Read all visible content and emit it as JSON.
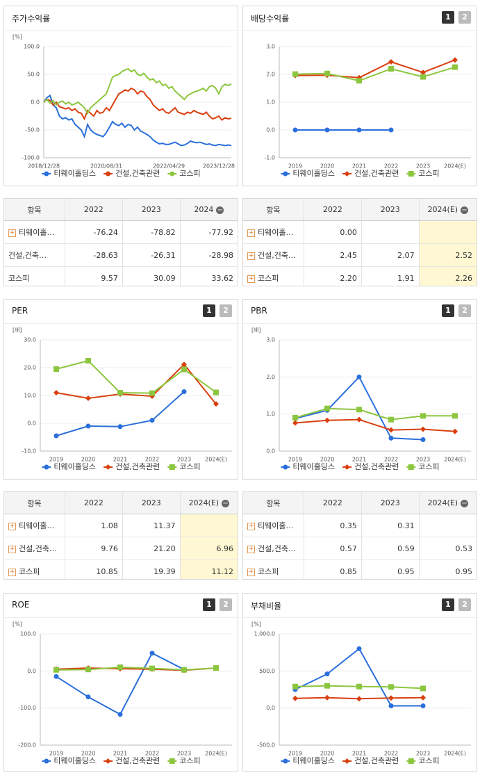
{
  "chart_data": [
    {
      "type": "timeline",
      "title": "주가수익률",
      "unit": "[%]",
      "categories": [
        "2018/12/28",
        null,
        null,
        null,
        null,
        null,
        null,
        null,
        null,
        null,
        null,
        null,
        null,
        null,
        null,
        null,
        null,
        null,
        null,
        null,
        "2020/08/31",
        null,
        null,
        null,
        null,
        null,
        null,
        null,
        null,
        null,
        null,
        null,
        null,
        null,
        null,
        null,
        null,
        null,
        null,
        null,
        "2022/04/29",
        null,
        null,
        null,
        null,
        null,
        null,
        null,
        null,
        null,
        null,
        null,
        null,
        null,
        null,
        null,
        null,
        null,
        null,
        null,
        "2023/12/28"
      ],
      "series": [
        {
          "name": "티웨이홀딩스",
          "color": "#2a6fdb",
          "values": [
            0,
            8,
            12,
            -5,
            -10,
            -25,
            -30,
            -28,
            -32,
            -30,
            -40,
            -45,
            -50,
            -62,
            -40,
            -50,
            -55,
            -58,
            -60,
            -62,
            -55,
            -45,
            -35,
            -40,
            -42,
            -38,
            -45,
            -40,
            -42,
            -50,
            -45,
            -52,
            -55,
            -58,
            -62,
            -68,
            -72,
            -75,
            -74,
            -76,
            -76,
            -74,
            -72,
            -75,
            -78,
            -77,
            -74,
            -70,
            -72,
            -73,
            -72,
            -74,
            -76,
            -75,
            -77,
            -78,
            -76,
            -77,
            -78,
            -77,
            -78
          ]
        },
        {
          "name": "건설,건축관련",
          "color": "#d9400f",
          "values": [
            0,
            5,
            3,
            -5,
            0,
            -8,
            -10,
            -12,
            -10,
            -15,
            -12,
            -18,
            -20,
            -30,
            -15,
            -20,
            -25,
            -15,
            -20,
            -18,
            -10,
            -15,
            -5,
            5,
            15,
            18,
            22,
            20,
            25,
            22,
            15,
            20,
            18,
            10,
            5,
            -5,
            -10,
            -15,
            -12,
            -18,
            -20,
            -15,
            -10,
            -18,
            -20,
            -22,
            -18,
            -20,
            -15,
            -18,
            -20,
            -22,
            -18,
            -25,
            -30,
            -28,
            -25,
            -32,
            -28,
            -30,
            -29
          ]
        },
        {
          "name": "코스피",
          "color": "#8cc63f",
          "values": [
            0,
            5,
            -2,
            3,
            -5,
            0,
            2,
            -3,
            0,
            -5,
            -3,
            0,
            -5,
            -10,
            -20,
            -10,
            -5,
            0,
            5,
            10,
            15,
            30,
            45,
            48,
            50,
            55,
            58,
            60,
            55,
            58,
            50,
            48,
            52,
            45,
            40,
            42,
            35,
            38,
            30,
            32,
            25,
            28,
            20,
            15,
            10,
            5,
            12,
            15,
            18,
            20,
            22,
            25,
            20,
            28,
            30,
            25,
            15,
            28,
            32,
            30,
            33
          ]
        }
      ],
      "ylim": [
        -100,
        100
      ],
      "yticks": [
        {
          "value": -100,
          "label": "-100.0"
        },
        {
          "value": -50,
          "label": "-50.0"
        },
        {
          "value": 0,
          "label": "0.0"
        },
        {
          "value": 50,
          "label": "50.0"
        },
        {
          "value": 100,
          "label": "100.0"
        }
      ],
      "grid": true
    },
    {
      "type": "line",
      "title": "배당수익률",
      "buttons": [
        "1",
        "2"
      ],
      "categories": [
        "2019",
        "2020",
        "2021",
        "2022",
        "2023",
        "2024(E)"
      ],
      "series": [
        {
          "name": "티웨이홀딩스",
          "color": "#2a6fdb",
          "marker": "circle",
          "values": [
            0,
            0,
            0,
            0,
            null,
            null
          ]
        },
        {
          "name": "건설,건축관련",
          "color": "#d9400f",
          "marker": "diamond",
          "values": [
            1.96,
            1.97,
            1.88,
            2.45,
            2.07,
            2.52
          ]
        },
        {
          "name": "코스피",
          "color": "#8cc63f",
          "marker": "square",
          "values": [
            2.01,
            2.03,
            1.77,
            2.2,
            1.91,
            2.26
          ]
        }
      ],
      "ylim": [
        -1,
        3
      ],
      "yticks": [
        {
          "value": -1,
          "label": "-1.0"
        },
        {
          "value": 0,
          "label": "0.0"
        },
        {
          "value": 1,
          "label": "1.0"
        },
        {
          "value": 2,
          "label": "2.0"
        },
        {
          "value": 3,
          "label": "3.0"
        }
      ],
      "grid": true
    },
    {
      "type": "line",
      "title": "PER",
      "unit": "[배]",
      "buttons": [
        "1",
        "2"
      ],
      "categories": [
        "2019",
        "2020",
        "2021",
        "2022",
        "2023",
        "2024(E)"
      ],
      "series": [
        {
          "name": "티웨이홀딩스",
          "color": "#2a6fdb",
          "marker": "circle",
          "values": [
            -4.5,
            -1,
            -1.2,
            1.08,
            11.37,
            null
          ]
        },
        {
          "name": "건설,건축관련",
          "color": "#d9400f",
          "marker": "diamond",
          "values": [
            11,
            9,
            10.5,
            9.76,
            21.2,
            6.96
          ]
        },
        {
          "name": "코스피",
          "color": "#8cc63f",
          "marker": "square",
          "values": [
            19.5,
            22.5,
            11,
            10.85,
            19.39,
            11.12
          ]
        }
      ],
      "ylim": [
        -10,
        30
      ],
      "yticks": [
        {
          "value": -10,
          "label": "-10.0"
        },
        {
          "value": 0,
          "label": "0.0"
        },
        {
          "value": 10,
          "label": "10.0"
        },
        {
          "value": 20,
          "label": "20.0"
        },
        {
          "value": 30,
          "label": "30.0"
        }
      ],
      "grid": true
    },
    {
      "type": "line",
      "title": "PBR",
      "unit": "[배]",
      "buttons": [
        "1",
        "2"
      ],
      "categories": [
        "2019",
        "2020",
        "2021",
        "2022",
        "2023",
        "2024(E)"
      ],
      "series": [
        {
          "name": "티웨이홀딩스",
          "color": "#2a6fdb",
          "marker": "circle",
          "values": [
            0.88,
            1.1,
            2.0,
            0.35,
            0.31,
            null
          ]
        },
        {
          "name": "건설,건축관련",
          "color": "#d9400f",
          "marker": "diamond",
          "values": [
            0.76,
            0.83,
            0.85,
            0.57,
            0.59,
            0.53
          ]
        },
        {
          "name": "코스피",
          "color": "#8cc63f",
          "marker": "square",
          "values": [
            0.9,
            1.15,
            1.12,
            0.85,
            0.95,
            0.95
          ]
        }
      ],
      "ylim": [
        0,
        3
      ],
      "yticks": [
        {
          "value": 0,
          "label": "0.0"
        },
        {
          "value": 1,
          "label": "1.0"
        },
        {
          "value": 2,
          "label": "2.0"
        },
        {
          "value": 3,
          "label": "3.0"
        }
      ],
      "grid": true
    },
    {
      "type": "line",
      "title": "ROE",
      "unit": "[%]",
      "buttons": [
        "1",
        "2"
      ],
      "categories": [
        "2019",
        "2020",
        "2021",
        "2022",
        "2023",
        "2024(E)"
      ],
      "series": [
        {
          "name": "티웨이홀딩스",
          "color": "#2a6fdb",
          "marker": "circle",
          "values": [
            -15,
            -70,
            -117,
            48,
            4,
            null
          ]
        },
        {
          "name": "건설,건축관련",
          "color": "#d9400f",
          "marker": "diamond",
          "values": [
            5,
            8,
            6,
            5,
            2,
            8
          ]
        },
        {
          "name": "코스피",
          "color": "#8cc63f",
          "marker": "square",
          "values": [
            3,
            4,
            10,
            7,
            3,
            8
          ]
        }
      ],
      "ylim": [
        -200,
        100
      ],
      "yticks": [
        {
          "value": -200,
          "label": "-200.0"
        },
        {
          "value": -100,
          "label": "-100.0"
        },
        {
          "value": 0,
          "label": "0.0"
        },
        {
          "value": 100,
          "label": "100.0"
        }
      ],
      "grid": true
    },
    {
      "type": "line",
      "title": "부채비율",
      "unit": "[%]",
      "buttons": [
        "1",
        "2"
      ],
      "categories": [
        "2019",
        "2020",
        "2021",
        "2022",
        "2023",
        "2024(E)"
      ],
      "series": [
        {
          "name": "티웨이홀딩스",
          "color": "#2a6fdb",
          "marker": "circle",
          "values": [
            250,
            460,
            800,
            30,
            30,
            null
          ]
        },
        {
          "name": "건설,건축관련",
          "color": "#d9400f",
          "marker": "diamond",
          "values": [
            130,
            140,
            125,
            135,
            140,
            null
          ]
        },
        {
          "name": "코스피",
          "color": "#8cc63f",
          "marker": "square",
          "values": [
            290,
            300,
            290,
            285,
            265,
            null
          ]
        }
      ],
      "ylim": [
        -500,
        1000
      ],
      "yticks": [
        {
          "value": -500,
          "label": "-500.0"
        },
        {
          "value": 0,
          "label": "0.0"
        },
        {
          "value": 500,
          "label": "500.0"
        },
        {
          "value": 1000,
          "label": "1,000.0"
        }
      ],
      "grid": true
    }
  ],
  "tables": [
    {
      "headers": [
        "항목",
        "2022",
        "2023",
        "2024"
      ],
      "expandable": [
        true,
        false,
        false
      ],
      "rows": [
        [
          "티웨이홀…",
          "-76.24",
          "-78.82",
          "-77.92"
        ],
        [
          "건설,건축…",
          "-28.63",
          "-26.31",
          "-28.98"
        ],
        [
          "코스피",
          "9.57",
          "30.09",
          "33.62"
        ]
      ]
    },
    {
      "headers": [
        "항목",
        "2022",
        "2023",
        "2024(E)"
      ],
      "expandable": [
        true,
        true,
        true
      ],
      "highlight_column": 3,
      "rows": [
        [
          "티웨이홀…",
          "0.00",
          null,
          null
        ],
        [
          "건설,건축…",
          "2.45",
          "2.07",
          "2.52"
        ],
        [
          "코스피",
          "2.20",
          "1.91",
          "2.26"
        ]
      ]
    },
    {
      "headers": [
        "항목",
        "2022",
        "2023",
        "2024(E)"
      ],
      "expandable": [
        true,
        true,
        true
      ],
      "highlight_column": 3,
      "rows": [
        [
          "티웨이홀…",
          "1.08",
          "11.37",
          null
        ],
        [
          "건설,건축…",
          "9.76",
          "21.20",
          "6.96"
        ],
        [
          "코스피",
          "10.85",
          "19.39",
          "11.12"
        ]
      ]
    },
    {
      "headers": [
        "항목",
        "2022",
        "2023",
        "2024(E)"
      ],
      "expandable": [
        true,
        true,
        true
      ],
      "rows": [
        [
          "티웨이홀…",
          "0.35",
          "0.31",
          null
        ],
        [
          "건설,건축…",
          "0.57",
          "0.59",
          "0.53"
        ],
        [
          "코스피",
          "0.85",
          "0.95",
          "0.95"
        ]
      ]
    }
  ]
}
